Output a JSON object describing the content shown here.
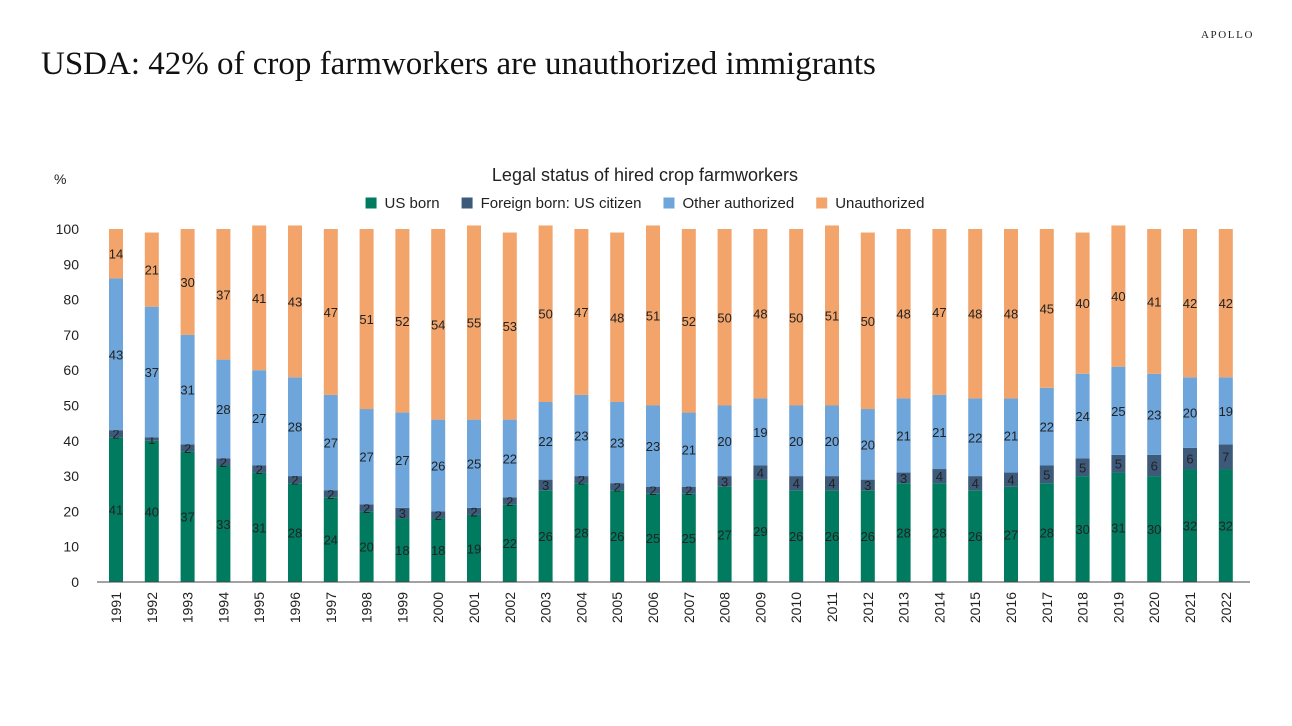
{
  "brand": "APOLLO",
  "headline": "USDA: 42% of crop farmworkers are unauthorized immigrants",
  "chart_data": {
    "type": "bar",
    "stacked": true,
    "title": "Legal status of hired crop farmworkers",
    "ylabel": "%",
    "xlabel": "",
    "ylim": [
      0,
      100
    ],
    "yticks": [
      0,
      10,
      20,
      30,
      40,
      50,
      60,
      70,
      80,
      90,
      100
    ],
    "grid": false,
    "legend_position": "top-center",
    "categories": [
      "1991",
      "1992",
      "1993",
      "1994",
      "1995",
      "1996",
      "1997",
      "1998",
      "1999",
      "2000",
      "2001",
      "2002",
      "2003",
      "2004",
      "2005",
      "2006",
      "2007",
      "2008",
      "2009",
      "2010",
      "2011",
      "2012",
      "2013",
      "2014",
      "2015",
      "2016",
      "2017",
      "2018",
      "2019",
      "2020",
      "2021",
      "2022"
    ],
    "series": [
      {
        "name": "US born",
        "color": "#007b5f",
        "values": [
          41,
          40,
          37,
          33,
          31,
          28,
          24,
          20,
          18,
          18,
          19,
          22,
          26,
          28,
          26,
          25,
          25,
          27,
          29,
          26,
          26,
          26,
          28,
          28,
          26,
          27,
          28,
          30,
          31,
          30,
          32,
          32
        ]
      },
      {
        "name": "Foreign born: US citizen",
        "color": "#3d5a7a",
        "values": [
          2,
          1,
          2,
          2,
          2,
          2,
          2,
          2,
          3,
          2,
          2,
          2,
          3,
          2,
          2,
          2,
          2,
          3,
          4,
          4,
          4,
          3,
          3,
          4,
          4,
          4,
          5,
          5,
          5,
          6,
          6,
          7
        ]
      },
      {
        "name": "Other authorized",
        "color": "#6ea6db",
        "values": [
          43,
          37,
          31,
          28,
          27,
          28,
          27,
          27,
          27,
          26,
          25,
          22,
          22,
          23,
          23,
          23,
          21,
          20,
          19,
          20,
          20,
          20,
          21,
          21,
          22,
          21,
          22,
          24,
          25,
          23,
          20,
          19
        ]
      },
      {
        "name": "Unauthorized",
        "color": "#f2a46a",
        "values": [
          14,
          21,
          30,
          37,
          41,
          43,
          47,
          51,
          52,
          54,
          55,
          53,
          50,
          47,
          48,
          51,
          52,
          50,
          48,
          50,
          51,
          50,
          48,
          47,
          48,
          48,
          45,
          40,
          40,
          41,
          42,
          42
        ]
      }
    ]
  }
}
